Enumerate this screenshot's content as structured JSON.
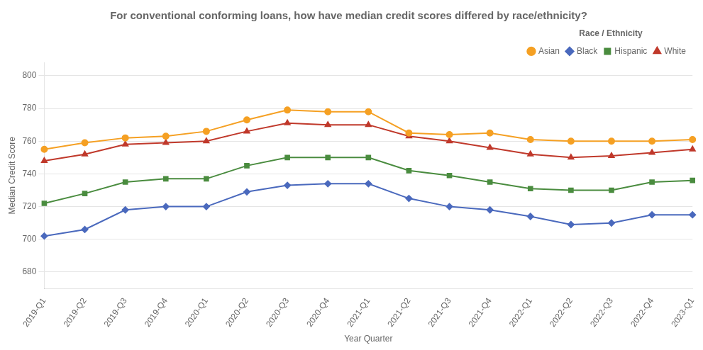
{
  "chart_data": {
    "type": "line",
    "title": "For conventional conforming loans, how have median credit scores differed by race/ethnicity?",
    "xlabel": "Year Quarter",
    "ylabel": "Median Credit Score",
    "legend_title": "Race / Ethnicity",
    "categories": [
      "2019-Q1",
      "2019-Q2",
      "2019-Q3",
      "2019-Q4",
      "2020-Q1",
      "2020-Q2",
      "2020-Q3",
      "2020-Q4",
      "2021-Q1",
      "2021-Q2",
      "2021-Q3",
      "2021-Q4",
      "2022-Q1",
      "2022-Q2",
      "2022-Q3",
      "2022-Q4",
      "2023-Q1"
    ],
    "series": [
      {
        "name": "Asian",
        "color": "#f5a023",
        "marker": "circle",
        "values": [
          755,
          759,
          762,
          763,
          766,
          773,
          779,
          778,
          778,
          765,
          764,
          765,
          761,
          760,
          760,
          760,
          761
        ]
      },
      {
        "name": "Black",
        "color": "#4a69bd",
        "marker": "diamond",
        "values": [
          702,
          706,
          718,
          720,
          720,
          729,
          733,
          734,
          734,
          725,
          720,
          718,
          714,
          709,
          710,
          715,
          715
        ]
      },
      {
        "name": "Hispanic",
        "color": "#4a8c3f",
        "marker": "square",
        "values": [
          722,
          728,
          735,
          737,
          737,
          745,
          750,
          750,
          750,
          742,
          739,
          735,
          731,
          730,
          730,
          735,
          736
        ]
      },
      {
        "name": "White",
        "color": "#c0392b",
        "marker": "triangle",
        "values": [
          748,
          752,
          758,
          759,
          760,
          766,
          771,
          770,
          770,
          763,
          760,
          756,
          752,
          750,
          751,
          753,
          755
        ]
      }
    ],
    "ylim": [
      670,
      808
    ],
    "yticks": [
      680,
      700,
      720,
      740,
      760,
      780,
      800
    ],
    "grid": "y",
    "legend": "upper right"
  }
}
